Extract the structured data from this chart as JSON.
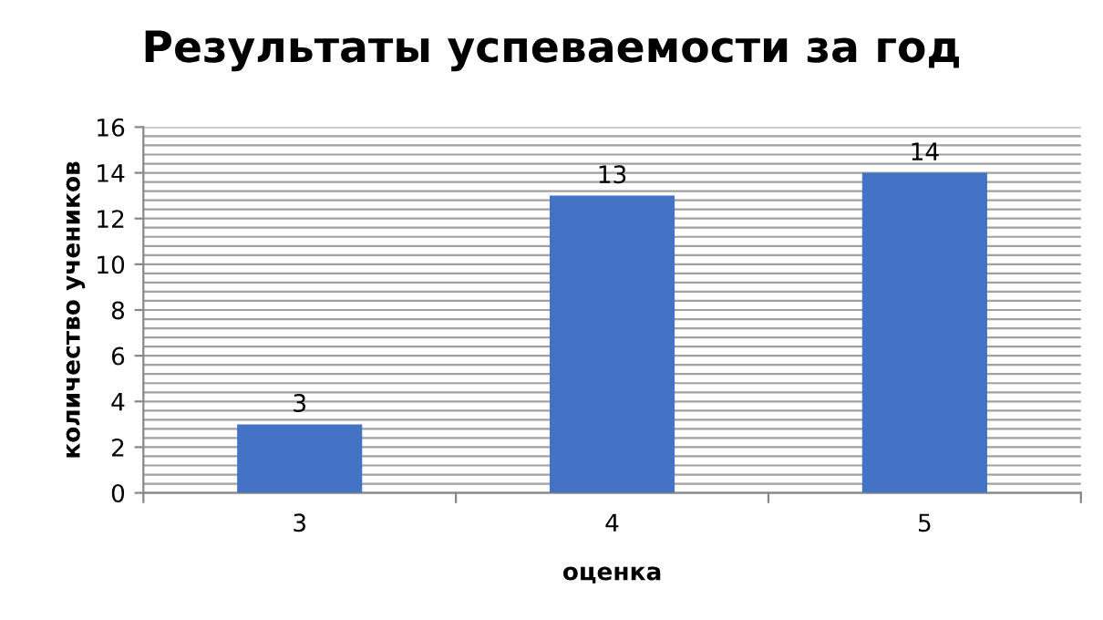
{
  "chart_data": {
    "type": "bar",
    "title": "Результаты успеваемости за год",
    "xlabel": "оценка",
    "ylabel": "количество учеников",
    "categories": [
      "3",
      "4",
      "5"
    ],
    "values": [
      3,
      13,
      14
    ],
    "color": "#4472c4",
    "data_labels": true,
    "ylim": [
      0,
      16
    ],
    "yticks": [
      0,
      2,
      4,
      6,
      8,
      10,
      12,
      14,
      16
    ],
    "grid": "y",
    "legend": false
  }
}
